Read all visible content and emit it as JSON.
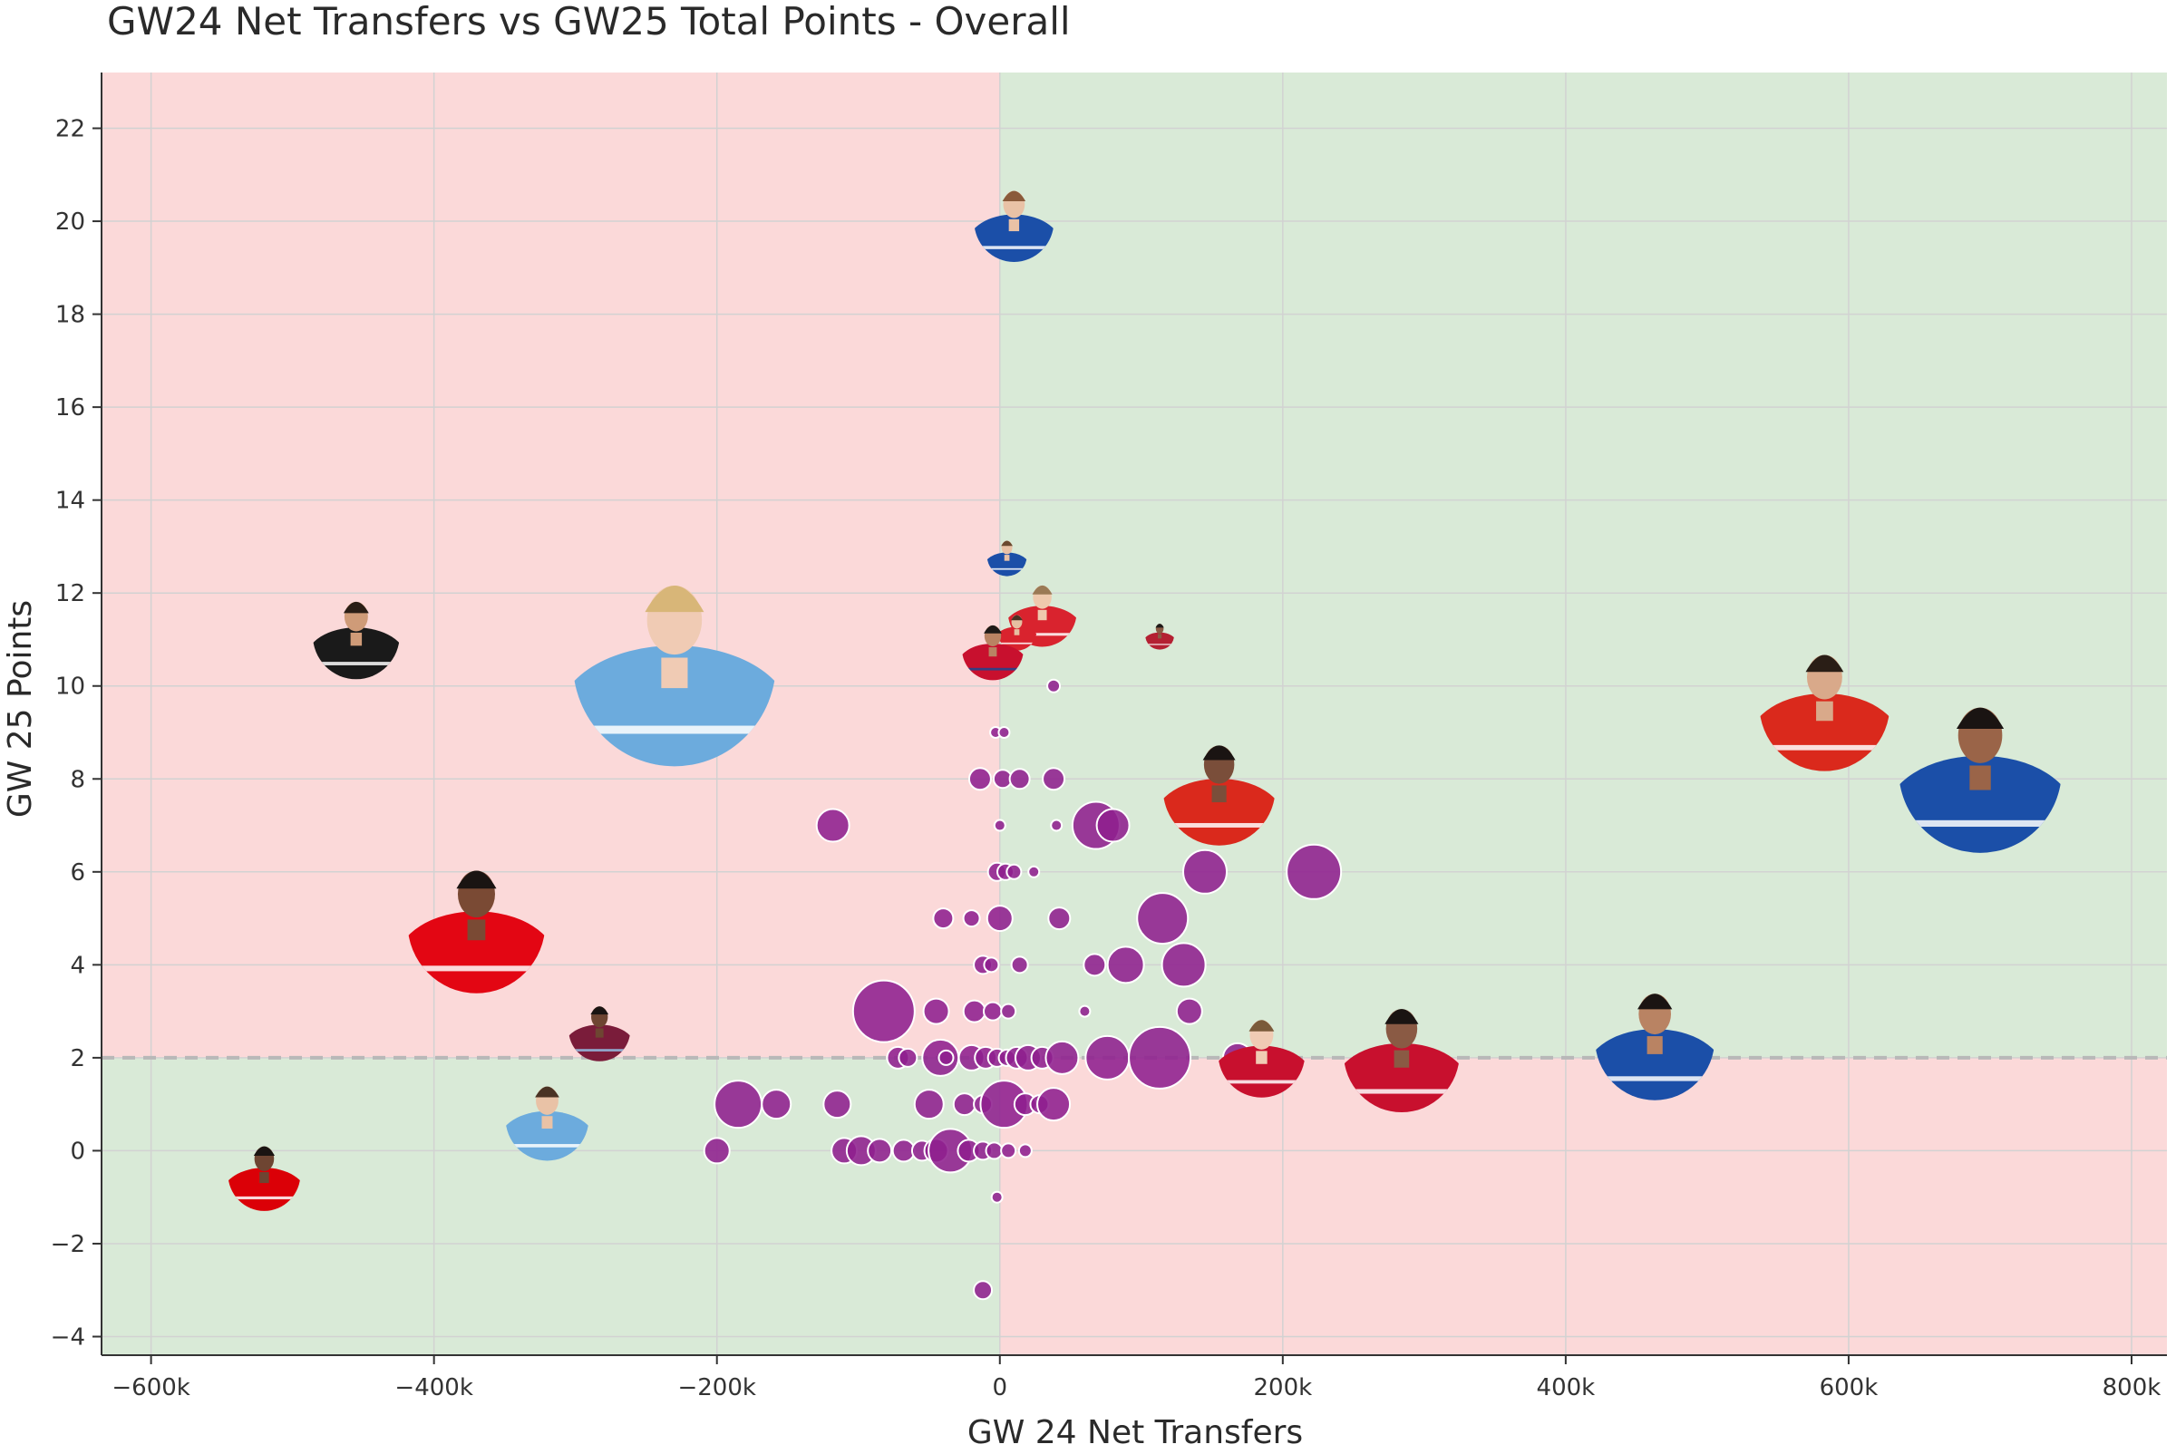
{
  "chart_data": {
    "type": "scatter",
    "title": "GW24 Net Transfers vs GW25 Total Points - Overall",
    "xlabel": "GW 24 Net Transfers",
    "ylabel": "GW 25 Points",
    "xlim": [
      -635000,
      825000
    ],
    "ylim": [
      -4.4,
      23.2
    ],
    "xticks": [
      -600000,
      -400000,
      -200000,
      0,
      200000,
      400000,
      600000,
      800000
    ],
    "xtick_labels": [
      "−600k",
      "−400k",
      "−200k",
      "0",
      "200k",
      "400k",
      "600k",
      "800k"
    ],
    "yticks": [
      -4,
      -2,
      0,
      2,
      4,
      6,
      8,
      10,
      12,
      14,
      16,
      18,
      20,
      22
    ],
    "ytick_labels": [
      "−4",
      "−2",
      "0",
      "2",
      "4",
      "6",
      "8",
      "10",
      "12",
      "14",
      "16",
      "18",
      "20",
      "22"
    ],
    "threshold_y": 2,
    "quadrant_colors": {
      "positive": "#d9ead7",
      "negative": "#fbd9d9"
    },
    "grid": true,
    "marker_color": "#8e1f8e",
    "bubbles": [
      {
        "x": -200000,
        "y": 0,
        "size": 14
      },
      {
        "x": -185000,
        "y": 1,
        "size": 26
      },
      {
        "x": -158000,
        "y": 1,
        "size": 16
      },
      {
        "x": -115000,
        "y": 1,
        "size": 15
      },
      {
        "x": -118000,
        "y": 7,
        "size": 18
      },
      {
        "x": -82000,
        "y": 3,
        "size": 34
      },
      {
        "x": -110000,
        "y": 0,
        "size": 14
      },
      {
        "x": -98000,
        "y": 0,
        "size": 16
      },
      {
        "x": -85000,
        "y": 0,
        "size": 13
      },
      {
        "x": -68000,
        "y": 0,
        "size": 12
      },
      {
        "x": -55000,
        "y": 0,
        "size": 11
      },
      {
        "x": -45000,
        "y": 0,
        "size": 13
      },
      {
        "x": -35000,
        "y": 0,
        "size": 24
      },
      {
        "x": -22000,
        "y": 0,
        "size": 12
      },
      {
        "x": -12000,
        "y": 0,
        "size": 10
      },
      {
        "x": -4000,
        "y": 0,
        "size": 9
      },
      {
        "x": 6000,
        "y": 0,
        "size": 8
      },
      {
        "x": 18000,
        "y": 0,
        "size": 7
      },
      {
        "x": -72000,
        "y": 2,
        "size": 12
      },
      {
        "x": -65000,
        "y": 2,
        "size": 10
      },
      {
        "x": -42000,
        "y": 2,
        "size": 20
      },
      {
        "x": -38000,
        "y": 2,
        "size": 8
      },
      {
        "x": -20000,
        "y": 2,
        "size": 14
      },
      {
        "x": -10000,
        "y": 2,
        "size": 12
      },
      {
        "x": -2000,
        "y": 2,
        "size": 10
      },
      {
        "x": 5000,
        "y": 2,
        "size": 9
      },
      {
        "x": 12000,
        "y": 2,
        "size": 12
      },
      {
        "x": 20000,
        "y": 2,
        "size": 14
      },
      {
        "x": 30000,
        "y": 2,
        "size": 12
      },
      {
        "x": 44000,
        "y": 2,
        "size": 18
      },
      {
        "x": 76000,
        "y": 2,
        "size": 24
      },
      {
        "x": 113000,
        "y": 2,
        "size": 34
      },
      {
        "x": 168000,
        "y": 2,
        "size": 16
      },
      {
        "x": -50000,
        "y": 1,
        "size": 16
      },
      {
        "x": -25000,
        "y": 1,
        "size": 12
      },
      {
        "x": -12000,
        "y": 1,
        "size": 10
      },
      {
        "x": 3000,
        "y": 1,
        "size": 26
      },
      {
        "x": 18000,
        "y": 1,
        "size": 12
      },
      {
        "x": 28000,
        "y": 1,
        "size": 10
      },
      {
        "x": 38000,
        "y": 1,
        "size": 18
      },
      {
        "x": -45000,
        "y": 3,
        "size": 14
      },
      {
        "x": -18000,
        "y": 3,
        "size": 12
      },
      {
        "x": -5000,
        "y": 3,
        "size": 10
      },
      {
        "x": 6000,
        "y": 3,
        "size": 8
      },
      {
        "x": 60000,
        "y": 3,
        "size": 6
      },
      {
        "x": 134000,
        "y": 3,
        "size": 14
      },
      {
        "x": -12000,
        "y": 4,
        "size": 10
      },
      {
        "x": -6000,
        "y": 4,
        "size": 8
      },
      {
        "x": 14000,
        "y": 4,
        "size": 9
      },
      {
        "x": 67000,
        "y": 4,
        "size": 12
      },
      {
        "x": 89000,
        "y": 4,
        "size": 20
      },
      {
        "x": 130000,
        "y": 4,
        "size": 24
      },
      {
        "x": -40000,
        "y": 5,
        "size": 11
      },
      {
        "x": -20000,
        "y": 5,
        "size": 9
      },
      {
        "x": 0,
        "y": 5,
        "size": 14
      },
      {
        "x": 42000,
        "y": 5,
        "size": 12
      },
      {
        "x": 115000,
        "y": 5,
        "size": 28
      },
      {
        "x": -2000,
        "y": 6,
        "size": 10
      },
      {
        "x": 4000,
        "y": 6,
        "size": 9
      },
      {
        "x": 10000,
        "y": 6,
        "size": 8
      },
      {
        "x": 24000,
        "y": 6,
        "size": 6
      },
      {
        "x": 145000,
        "y": 6,
        "size": 24
      },
      {
        "x": 222000,
        "y": 6,
        "size": 30
      },
      {
        "x": 0,
        "y": 7,
        "size": 6
      },
      {
        "x": 40000,
        "y": 7,
        "size": 6
      },
      {
        "x": 68000,
        "y": 7,
        "size": 26
      },
      {
        "x": 80000,
        "y": 7,
        "size": 18
      },
      {
        "x": -14000,
        "y": 8,
        "size": 12
      },
      {
        "x": 2000,
        "y": 8,
        "size": 10
      },
      {
        "x": 14000,
        "y": 8,
        "size": 11
      },
      {
        "x": 38000,
        "y": 8,
        "size": 12
      },
      {
        "x": -3000,
        "y": 9,
        "size": 6
      },
      {
        "x": 3000,
        "y": 9,
        "size": 6
      },
      {
        "x": 38000,
        "y": 10,
        "size": 7
      },
      {
        "x": -2000,
        "y": -1,
        "size": 6
      },
      {
        "x": -12000,
        "y": -3,
        "size": 10
      }
    ],
    "players": [
      {
        "x": 10000,
        "y": 20,
        "size": 44,
        "shirt": "#1b4fa8",
        "accent": "#ffffff",
        "skin": "#e9c2a6",
        "hair": "#8a5a3a"
      },
      {
        "x": 5000,
        "y": 12.8,
        "size": 22,
        "shirt": "#1b4fa8",
        "accent": "#ffffff",
        "skin": "#e9c2a6",
        "hair": "#6b4a30"
      },
      {
        "x": 30000,
        "y": 11.6,
        "size": 38,
        "shirt": "#d9232e",
        "accent": "#ffffff",
        "skin": "#efc9ad",
        "hair": "#9b7a55"
      },
      {
        "x": 12000,
        "y": 11.2,
        "size": 22,
        "shirt": "#d9232e",
        "accent": "#ffffff",
        "skin": "#e6bfa1",
        "hair": "#4a3324"
      },
      {
        "x": -5000,
        "y": 10.8,
        "size": 34,
        "shirt": "#c8102e",
        "accent": "#1b458f",
        "skin": "#b98363",
        "hair": "#1e1a18"
      },
      {
        "x": 113000,
        "y": 11.1,
        "size": 16,
        "shirt": "#b42032",
        "accent": "#ffffff",
        "skin": "#8a5a44",
        "hair": "#1e1a18"
      },
      {
        "x": -455000,
        "y": 11.1,
        "size": 48,
        "shirt": "#1a1a1a",
        "accent": "#ffffff",
        "skin": "#cf9b78",
        "hair": "#2a1e16"
      },
      {
        "x": -230000,
        "y": 10.5,
        "size": 112,
        "shirt": "#6cabdd",
        "accent": "#ffffff",
        "skin": "#f0cbb4",
        "hair": "#d8b678"
      },
      {
        "x": 155000,
        "y": 7.8,
        "size": 62,
        "shirt": "#da291c",
        "accent": "#ffffff",
        "skin": "#7a4e3a",
        "hair": "#1a1412"
      },
      {
        "x": -370000,
        "y": 4.9,
        "size": 76,
        "shirt": "#e30613",
        "accent": "#ffffff",
        "skin": "#7a4a34",
        "hair": "#1a1412"
      },
      {
        "x": -283000,
        "y": 2.6,
        "size": 34,
        "shirt": "#7a1c3a",
        "accent": "#95bfe5",
        "skin": "#6e4532",
        "hair": "#1a1412"
      },
      {
        "x": -320000,
        "y": 0.7,
        "size": 46,
        "shirt": "#6cabdd",
        "accent": "#ffffff",
        "skin": "#e9c2a6",
        "hair": "#4a3324"
      },
      {
        "x": -520000,
        "y": -0.5,
        "size": 40,
        "shirt": "#db0007",
        "accent": "#ffffff",
        "skin": "#6e4532",
        "hair": "#1a1412"
      },
      {
        "x": 583000,
        "y": 9.6,
        "size": 72,
        "shirt": "#da291c",
        "accent": "#ffffff",
        "skin": "#d9a98a",
        "hair": "#2a1e16"
      },
      {
        "x": 693000,
        "y": 8.2,
        "size": 90,
        "shirt": "#1b4fa8",
        "accent": "#ffffff",
        "skin": "#9a6448",
        "hair": "#1a1412"
      },
      {
        "x": 185000,
        "y": 2.1,
        "size": 48,
        "shirt": "#c8102e",
        "accent": "#ffffff",
        "skin": "#f0cbb4",
        "hair": "#7a5a3a"
      },
      {
        "x": 284000,
        "y": 2.1,
        "size": 64,
        "shirt": "#c8102e",
        "accent": "#ffffff",
        "skin": "#8a5a44",
        "hair": "#1a1412"
      },
      {
        "x": 463000,
        "y": 2.4,
        "size": 66,
        "shirt": "#1b4fa8",
        "accent": "#ffffff",
        "skin": "#b98363",
        "hair": "#1a1412"
      }
    ]
  }
}
